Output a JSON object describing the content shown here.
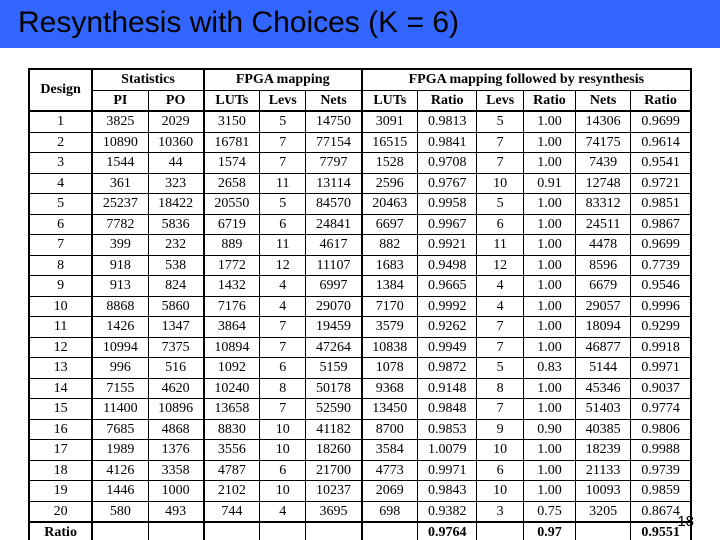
{
  "title": "Resynthesis with Choices (K = 6)",
  "page_number": "18",
  "colors": {
    "title_bg": "#3366ff",
    "title_fg": "#000000",
    "border": "#000000",
    "page_bg": "#ffffff"
  },
  "headers": {
    "group1": "Statistics",
    "group2": "FPGA mapping",
    "group3": "FPGA mapping followed by resynthesis",
    "design": "Design",
    "pi": "PI",
    "po": "PO",
    "luts1": "LUTs",
    "levs1": "Levs",
    "nets1": "Nets",
    "luts2": "LUTs",
    "ratio_luts": "Ratio",
    "levs2": "Levs",
    "ratio_levs": "Ratio",
    "nets2": "Nets",
    "ratio_nets": "Ratio"
  },
  "rows": [
    {
      "d": "1",
      "pi": "3825",
      "po": "2029",
      "l1": "3150",
      "lv1": "5",
      "n1": "14750",
      "l2": "3091",
      "rl": "0.9813",
      "lv2": "5",
      "rlv": "1.00",
      "n2": "14306",
      "rn": "0.9699"
    },
    {
      "d": "2",
      "pi": "10890",
      "po": "10360",
      "l1": "16781",
      "lv1": "7",
      "n1": "77154",
      "l2": "16515",
      "rl": "0.9841",
      "lv2": "7",
      "rlv": "1.00",
      "n2": "74175",
      "rn": "0.9614"
    },
    {
      "d": "3",
      "pi": "1544",
      "po": "44",
      "l1": "1574",
      "lv1": "7",
      "n1": "7797",
      "l2": "1528",
      "rl": "0.9708",
      "lv2": "7",
      "rlv": "1.00",
      "n2": "7439",
      "rn": "0.9541"
    },
    {
      "d": "4",
      "pi": "361",
      "po": "323",
      "l1": "2658",
      "lv1": "11",
      "n1": "13114",
      "l2": "2596",
      "rl": "0.9767",
      "lv2": "10",
      "rlv": "0.91",
      "n2": "12748",
      "rn": "0.9721"
    },
    {
      "d": "5",
      "pi": "25237",
      "po": "18422",
      "l1": "20550",
      "lv1": "5",
      "n1": "84570",
      "l2": "20463",
      "rl": "0.9958",
      "lv2": "5",
      "rlv": "1.00",
      "n2": "83312",
      "rn": "0.9851"
    },
    {
      "d": "6",
      "pi": "7782",
      "po": "5836",
      "l1": "6719",
      "lv1": "6",
      "n1": "24841",
      "l2": "6697",
      "rl": "0.9967",
      "lv2": "6",
      "rlv": "1.00",
      "n2": "24511",
      "rn": "0.9867"
    },
    {
      "d": "7",
      "pi": "399",
      "po": "232",
      "l1": "889",
      "lv1": "11",
      "n1": "4617",
      "l2": "882",
      "rl": "0.9921",
      "lv2": "11",
      "rlv": "1.00",
      "n2": "4478",
      "rn": "0.9699"
    },
    {
      "d": "8",
      "pi": "918",
      "po": "538",
      "l1": "1772",
      "lv1": "12",
      "n1": "11107",
      "l2": "1683",
      "rl": "0.9498",
      "lv2": "12",
      "rlv": "1.00",
      "n2": "8596",
      "rn": "0.7739"
    },
    {
      "d": "9",
      "pi": "913",
      "po": "824",
      "l1": "1432",
      "lv1": "4",
      "n1": "6997",
      "l2": "1384",
      "rl": "0.9665",
      "lv2": "4",
      "rlv": "1.00",
      "n2": "6679",
      "rn": "0.9546"
    },
    {
      "d": "10",
      "pi": "8868",
      "po": "5860",
      "l1": "7176",
      "lv1": "4",
      "n1": "29070",
      "l2": "7170",
      "rl": "0.9992",
      "lv2": "4",
      "rlv": "1.00",
      "n2": "29057",
      "rn": "0.9996"
    },
    {
      "d": "11",
      "pi": "1426",
      "po": "1347",
      "l1": "3864",
      "lv1": "7",
      "n1": "19459",
      "l2": "3579",
      "rl": "0.9262",
      "lv2": "7",
      "rlv": "1.00",
      "n2": "18094",
      "rn": "0.9299"
    },
    {
      "d": "12",
      "pi": "10994",
      "po": "7375",
      "l1": "10894",
      "lv1": "7",
      "n1": "47264",
      "l2": "10838",
      "rl": "0.9949",
      "lv2": "7",
      "rlv": "1.00",
      "n2": "46877",
      "rn": "0.9918"
    },
    {
      "d": "13",
      "pi": "996",
      "po": "516",
      "l1": "1092",
      "lv1": "6",
      "n1": "5159",
      "l2": "1078",
      "rl": "0.9872",
      "lv2": "5",
      "rlv": "0.83",
      "n2": "5144",
      "rn": "0.9971"
    },
    {
      "d": "14",
      "pi": "7155",
      "po": "4620",
      "l1": "10240",
      "lv1": "8",
      "n1": "50178",
      "l2": "9368",
      "rl": "0.9148",
      "lv2": "8",
      "rlv": "1.00",
      "n2": "45346",
      "rn": "0.9037"
    },
    {
      "d": "15",
      "pi": "11400",
      "po": "10896",
      "l1": "13658",
      "lv1": "7",
      "n1": "52590",
      "l2": "13450",
      "rl": "0.9848",
      "lv2": "7",
      "rlv": "1.00",
      "n2": "51403",
      "rn": "0.9774"
    },
    {
      "d": "16",
      "pi": "7685",
      "po": "4868",
      "l1": "8830",
      "lv1": "10",
      "n1": "41182",
      "l2": "8700",
      "rl": "0.9853",
      "lv2": "9",
      "rlv": "0.90",
      "n2": "40385",
      "rn": "0.9806"
    },
    {
      "d": "17",
      "pi": "1989",
      "po": "1376",
      "l1": "3556",
      "lv1": "10",
      "n1": "18260",
      "l2": "3584",
      "rl": "1.0079",
      "lv2": "10",
      "rlv": "1.00",
      "n2": "18239",
      "rn": "0.9988"
    },
    {
      "d": "18",
      "pi": "4126",
      "po": "3358",
      "l1": "4787",
      "lv1": "6",
      "n1": "21700",
      "l2": "4773",
      "rl": "0.9971",
      "lv2": "6",
      "rlv": "1.00",
      "n2": "21133",
      "rn": "0.9739"
    },
    {
      "d": "19",
      "pi": "1446",
      "po": "1000",
      "l1": "2102",
      "lv1": "10",
      "n1": "10237",
      "l2": "2069",
      "rl": "0.9843",
      "lv2": "10",
      "rlv": "1.00",
      "n2": "10093",
      "rn": "0.9859"
    },
    {
      "d": "20",
      "pi": "580",
      "po": "493",
      "l1": "744",
      "lv1": "4",
      "n1": "3695",
      "l2": "698",
      "rl": "0.9382",
      "lv2": "3",
      "rlv": "0.75",
      "n2": "3205",
      "rn": "0.8674"
    }
  ],
  "summary": {
    "label": "Ratio",
    "luts": "0.9764",
    "levs": "0.97",
    "nets": "0.9551"
  }
}
